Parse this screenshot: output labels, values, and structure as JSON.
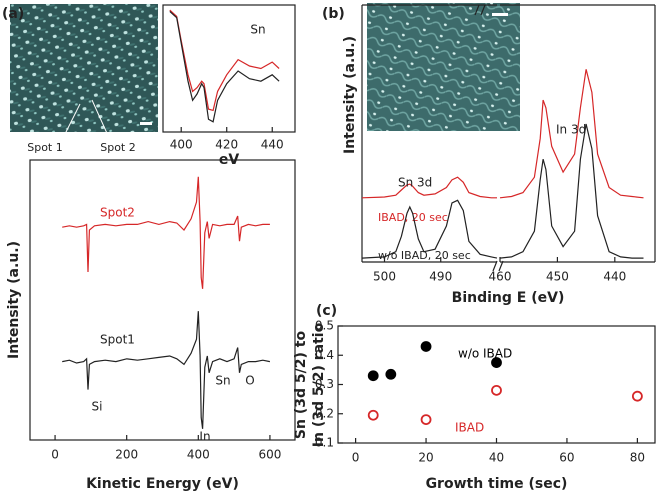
{
  "chart_data": [
    {
      "type": "line",
      "label": "(a)",
      "xlabel": "Kinetic Energy (eV)",
      "ylabel": "Intensity (a.u.)",
      "xlim": [
        -70,
        670
      ],
      "ylim": [
        0,
        100
      ],
      "xticks": [
        0,
        200,
        400,
        600
      ],
      "image_labels": [
        "Spot 1",
        "Spot 2"
      ],
      "x": [
        20,
        40,
        60,
        80,
        88,
        92,
        96,
        110,
        140,
        170,
        200,
        230,
        260,
        290,
        320,
        340,
        360,
        380,
        395,
        400,
        405,
        408,
        412,
        418,
        425,
        430,
        440,
        460,
        480,
        500,
        510,
        515,
        520,
        540,
        560,
        580,
        600
      ],
      "series": [
        {
          "name": "Spot2",
          "color": "#d62728",
          "values": [
            76,
            76.5,
            76,
            76.5,
            77,
            60,
            75,
            76.5,
            77,
            76.5,
            77,
            77,
            78,
            77,
            78,
            77.5,
            75,
            79,
            85,
            94,
            78,
            58,
            54,
            74,
            78,
            72,
            77,
            76.5,
            77,
            77,
            80,
            71,
            76,
            77,
            76.5,
            77,
            77
          ]
        },
        {
          "name": "Spot1",
          "color": "#222222",
          "values": [
            28,
            28.5,
            27.5,
            28,
            29,
            18,
            27,
            28,
            28.5,
            28,
            29,
            28.5,
            29,
            29.5,
            30,
            29,
            27,
            31,
            36,
            46,
            30,
            8,
            4,
            26,
            30,
            24,
            28,
            29,
            28,
            29,
            33,
            24,
            27,
            28,
            28,
            28.5,
            28
          ]
        }
      ],
      "annotations": [
        "Si",
        "In",
        "Sn",
        "O"
      ]
    },
    {
      "type": "line",
      "title": "Sn",
      "xlabel": "eV",
      "xlim": [
        392,
        450
      ],
      "ylim": [
        0,
        100
      ],
      "xticks": [
        400,
        420,
        440
      ],
      "x": [
        395,
        398,
        400,
        403,
        405,
        407,
        409,
        410,
        412,
        414,
        416,
        420,
        425,
        430,
        435,
        440,
        443
      ],
      "series": [
        {
          "color": "#d62728",
          "values": [
            96,
            91,
            72,
            45,
            32,
            35,
            40,
            38,
            18,
            17,
            32,
            45,
            57,
            52,
            50,
            55,
            50
          ]
        },
        {
          "color": "#222222",
          "values": [
            95,
            90,
            70,
            40,
            25,
            30,
            38,
            35,
            10,
            8,
            25,
            38,
            48,
            42,
            40,
            45,
            40
          ]
        }
      ]
    },
    {
      "type": "line",
      "label": "(b)",
      "xlabel": "Binding E (eV)",
      "ylabel": "Intensity (a.u.)",
      "ylim": [
        0,
        100
      ],
      "segments": [
        {
          "xlim": [
            504,
            480
          ],
          "xticks": [
            500,
            490
          ]
        },
        {
          "xlim": [
            460,
            433
          ],
          "xticks": [
            460,
            450,
            440
          ]
        }
      ],
      "x": [
        504,
        500,
        498,
        497,
        496,
        495.5,
        495,
        494,
        493,
        491,
        489,
        488,
        487,
        486,
        485,
        483,
        481,
        480,
        null,
        460,
        458,
        456,
        454,
        453,
        452.5,
        452,
        451,
        449,
        447,
        446,
        445,
        444,
        443,
        441,
        439,
        437,
        435
      ],
      "series": [
        {
          "name": "IBAD, 20 sec",
          "color": "#d62728",
          "values": [
            25,
            25.3,
            26,
            28,
            30,
            30.3,
            29.5,
            27,
            26,
            26.5,
            29,
            32,
            33,
            31,
            27,
            25.5,
            25,
            25,
            null,
            25,
            25.5,
            27,
            33,
            48,
            63,
            60,
            45,
            35,
            42,
            60,
            75,
            66,
            42,
            29,
            26,
            25.5,
            25
          ]
        },
        {
          "name": "w/o IBAD, 20 sec",
          "color": "#222222",
          "values": [
            1.5,
            2,
            4,
            10,
            19,
            21.4,
            19,
            9,
            4,
            5,
            14,
            23,
            24,
            20,
            8,
            3,
            2,
            1.5,
            null,
            1.5,
            2,
            4,
            12,
            32,
            40,
            36,
            14,
            6,
            12,
            40,
            53.7,
            44,
            18,
            4,
            2,
            1.5,
            1.5
          ]
        }
      ],
      "annotations": [
        "Sn 3d",
        "In 3d"
      ]
    },
    {
      "type": "scatter",
      "label": "(c)",
      "xlabel": "Growth time (sec)",
      "ylabel": [
        "Sn (3d 5/2) to",
        "In (3d 5/2) ratio"
      ],
      "xlim": [
        -5,
        85
      ],
      "ylim": [
        0.1,
        0.5
      ],
      "xticks": [
        0,
        20,
        40,
        60,
        80
      ],
      "yticks": [
        0.1,
        0.2,
        0.3,
        0.4,
        0.5
      ],
      "series": [
        {
          "name": "w/o IBAD",
          "color": "#000000",
          "marker": "filled",
          "x": [
            5,
            10,
            20,
            40
          ],
          "values": [
            0.33,
            0.335,
            0.43,
            0.375
          ]
        },
        {
          "name": "IBAD",
          "color": "#d62728",
          "marker": "open",
          "x": [
            5,
            20,
            40,
            80
          ],
          "values": [
            0.195,
            0.18,
            0.28,
            0.26
          ]
        }
      ]
    }
  ]
}
